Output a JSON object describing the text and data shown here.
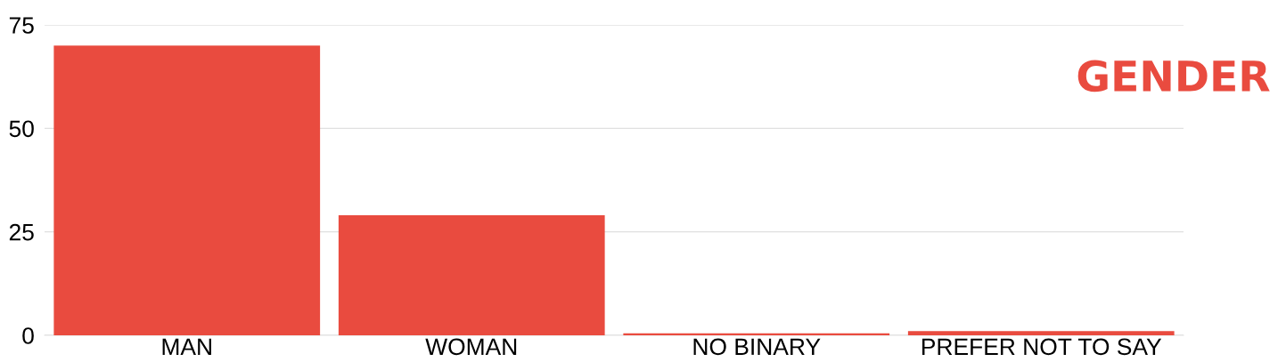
{
  "chart_data": {
    "type": "bar",
    "title": "GENDER",
    "categories": [
      "MAN",
      "WOMAN",
      "NO BINARY",
      "PREFER NOT TO SAY"
    ],
    "values": [
      70,
      29,
      0.5,
      1
    ],
    "color": "#e94b3f",
    "ylim": [
      0,
      75
    ],
    "yticks": [
      0,
      25,
      50,
      75
    ],
    "grid": "y"
  }
}
